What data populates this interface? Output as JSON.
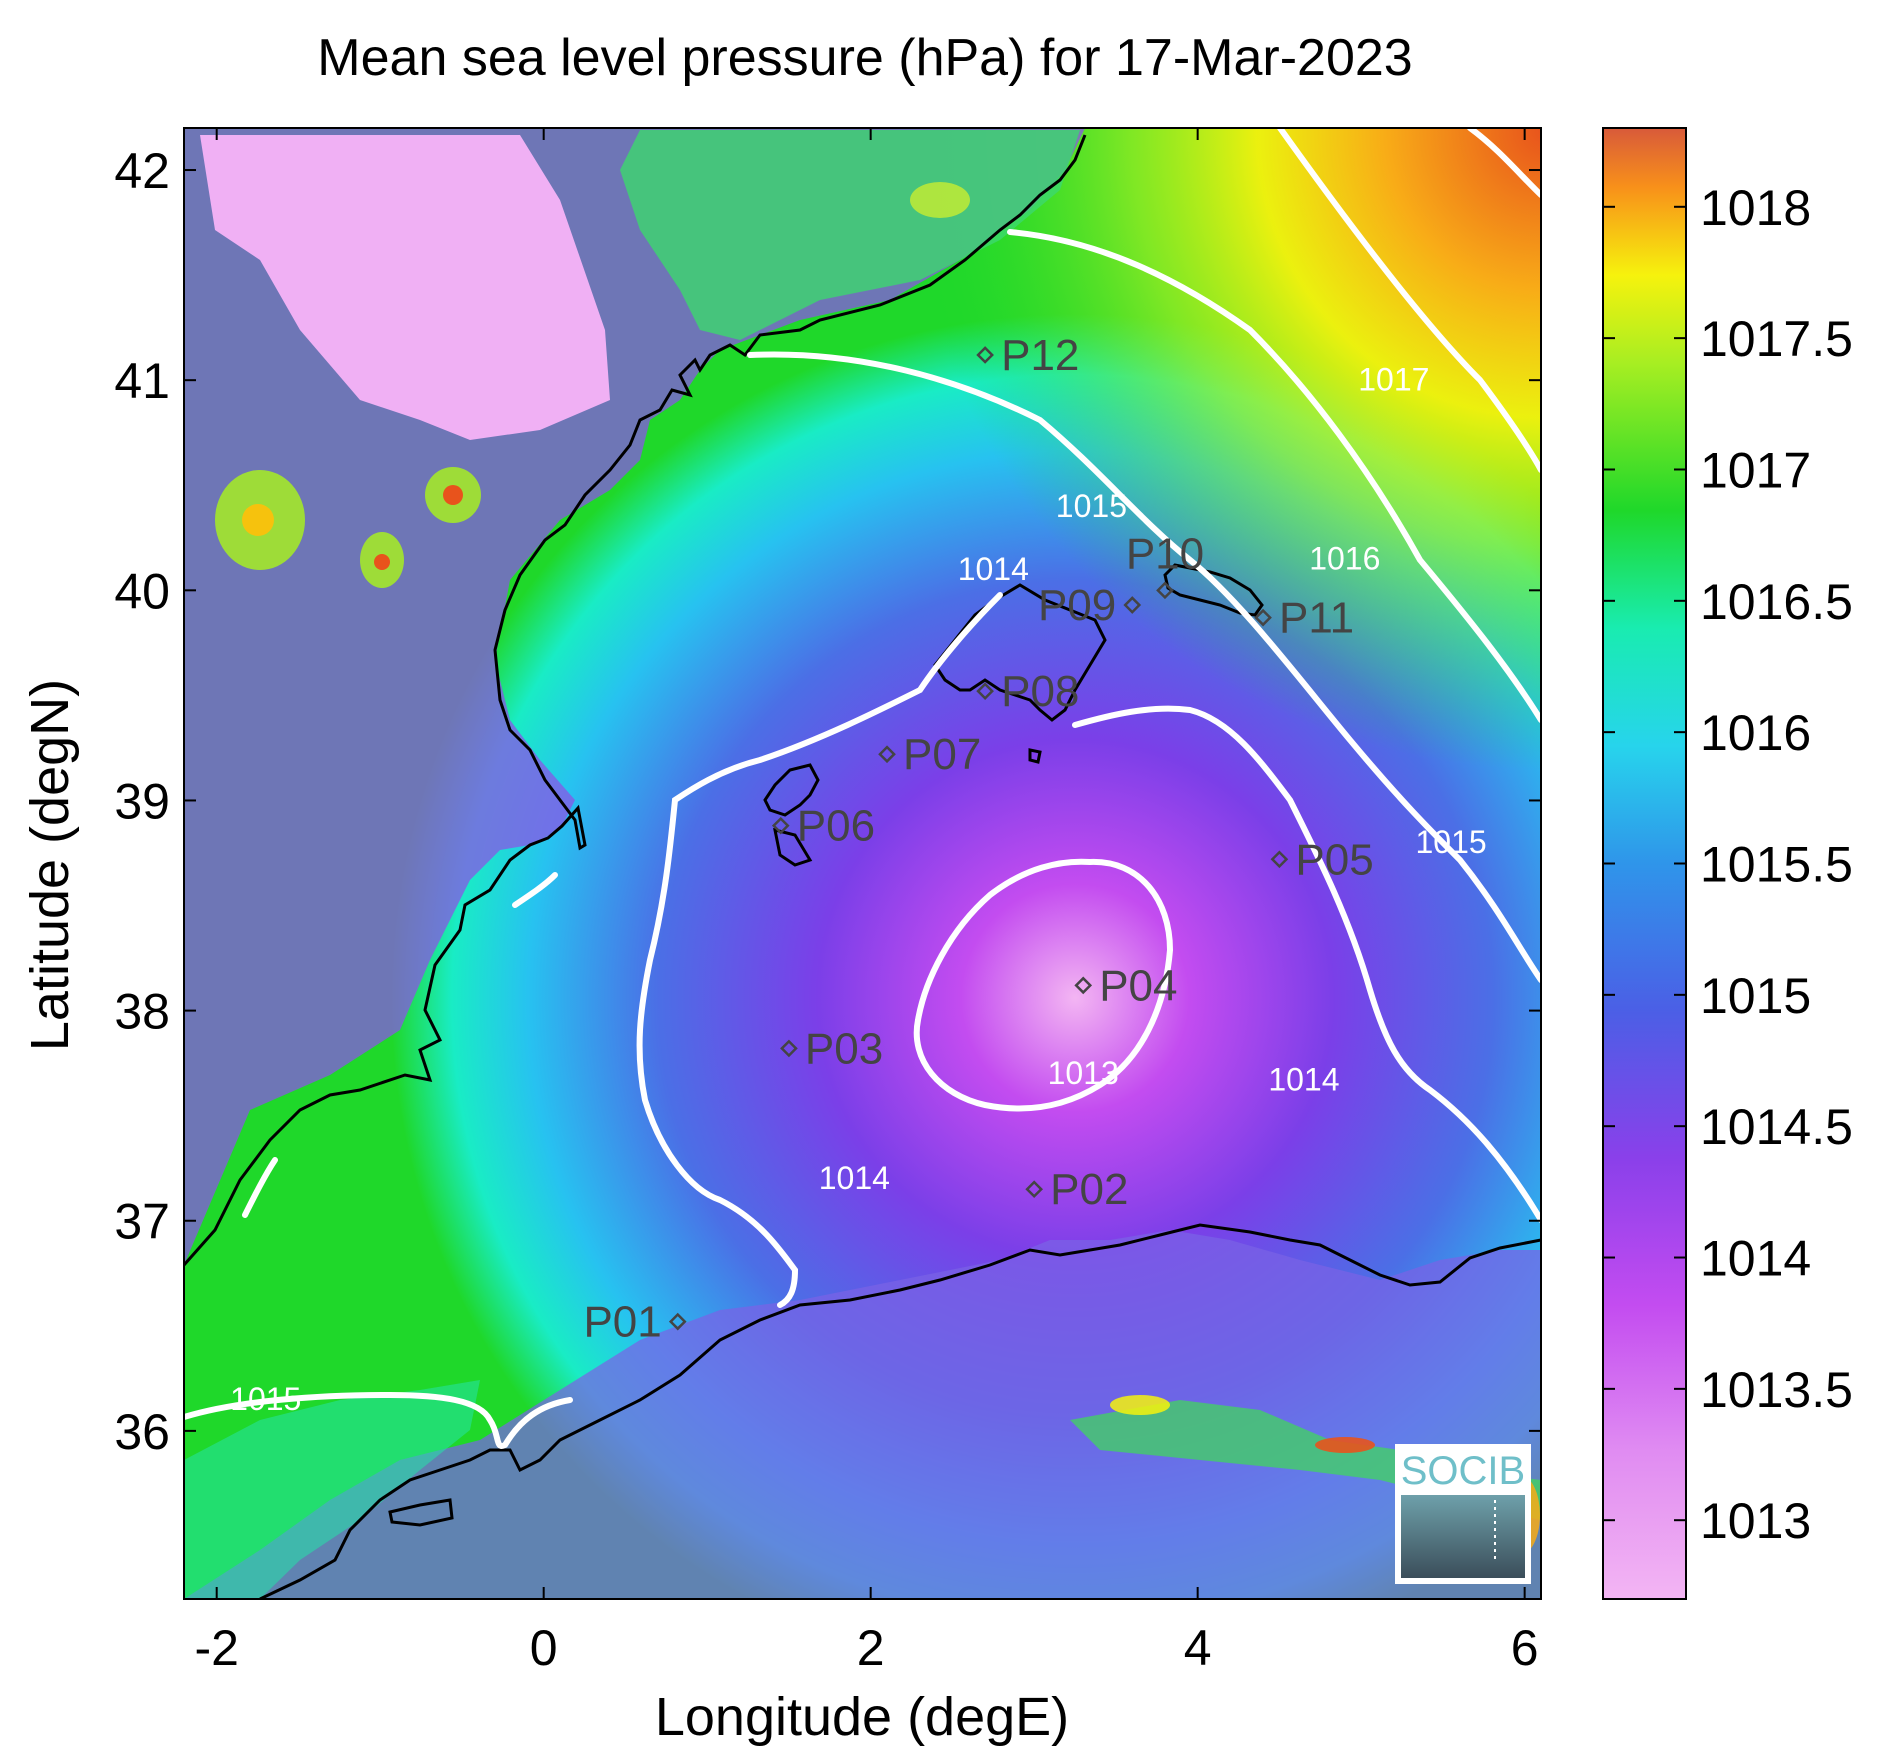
{
  "title": "Mean sea level pressure (hPa) for 17-Mar-2023",
  "xlabel": "Longitude (degE)",
  "ylabel": "Latitude (degN)",
  "x_range": [
    -2.2,
    6.1
  ],
  "y_range": [
    35.2,
    42.2
  ],
  "x_ticks": [
    "-2",
    "0",
    "2",
    "4",
    "6"
  ],
  "x_tick_values": [
    -2,
    0,
    2,
    4,
    6
  ],
  "y_ticks": [
    "42",
    "41",
    "40",
    "39",
    "38",
    "37",
    "36"
  ],
  "y_tick_values": [
    42,
    41,
    40,
    39,
    38,
    37,
    36
  ],
  "colorbar": {
    "ticks": [
      "1018",
      "1017.5",
      "1017",
      "1016.5",
      "1016",
      "1015.5",
      "1015",
      "1014.5",
      "1014",
      "1013.5",
      "1013"
    ],
    "tick_values": [
      1018,
      1017.5,
      1017,
      1016.5,
      1016,
      1015.5,
      1015,
      1014.5,
      1014,
      1013.5,
      1013
    ],
    "range": [
      1012.7,
      1018.3
    ],
    "colors": [
      "#f3b5f3",
      "#c34cf0",
      "#7b3fe8",
      "#4b6fe6",
      "#27c2f0",
      "#19ecc5",
      "#1fd82a",
      "#a7ee22",
      "#f6f20d",
      "#f8ac17",
      "#e8531c",
      "#d85a3a"
    ]
  },
  "contour_labels": [
    {
      "text": "1017",
      "lon": 5.2,
      "lat": 40.95
    },
    {
      "text": "1016",
      "lon": 4.9,
      "lat": 40.1
    },
    {
      "text": "1015",
      "lon": 3.35,
      "lat": 40.35
    },
    {
      "text": "1015",
      "lon": 5.55,
      "lat": 38.75
    },
    {
      "text": "1014",
      "lon": 2.75,
      "lat": 40.05
    },
    {
      "text": "1014",
      "lon": 4.65,
      "lat": 37.62
    },
    {
      "text": "1014",
      "lon": 1.9,
      "lat": 37.15
    },
    {
      "text": "1013",
      "lon": 3.3,
      "lat": 37.65
    },
    {
      "text": "1015",
      "lon": -1.7,
      "lat": 36.1
    }
  ],
  "points": [
    {
      "label": "P01",
      "lon": 0.82,
      "lat": 36.52,
      "side": "left"
    },
    {
      "label": "P02",
      "lon": 3.0,
      "lat": 37.15,
      "side": "right"
    },
    {
      "label": "P03",
      "lon": 1.5,
      "lat": 37.82,
      "side": "right"
    },
    {
      "label": "P04",
      "lon": 3.3,
      "lat": 38.12,
      "side": "right"
    },
    {
      "label": "P05",
      "lon": 4.5,
      "lat": 38.72,
      "side": "right"
    },
    {
      "label": "P06",
      "lon": 1.45,
      "lat": 38.88,
      "side": "right"
    },
    {
      "label": "P07",
      "lon": 2.1,
      "lat": 39.22,
      "side": "right"
    },
    {
      "label": "P08",
      "lon": 2.7,
      "lat": 39.52,
      "side": "right"
    },
    {
      "label": "P09",
      "lon": 3.6,
      "lat": 39.93,
      "side": "left"
    },
    {
      "label": "P10",
      "lon": 3.8,
      "lat": 40.0,
      "side": "above"
    },
    {
      "label": "P11",
      "lon": 4.4,
      "lat": 39.87,
      "side": "right"
    },
    {
      "label": "P12",
      "lon": 2.7,
      "lat": 41.12,
      "side": "right"
    }
  ],
  "logo_text": "SOCIB"
}
